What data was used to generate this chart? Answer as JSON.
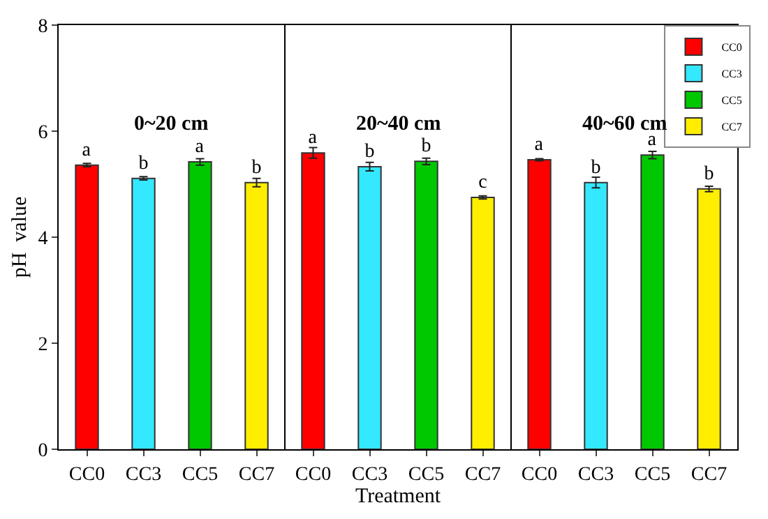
{
  "chart_data": {
    "type": "bar",
    "xlabel": "Treatment",
    "ylabel": "pH  value",
    "annotations": [
      "0~20 cm",
      "20~40 cm",
      "40~60 cm"
    ],
    "categories": [
      "CC0",
      "CC3",
      "CC5",
      "CC7",
      "CC0",
      "CC3",
      "CC5",
      "CC7",
      "CC0",
      "CC3",
      "CC5",
      "CC7"
    ],
    "ylim": [
      0,
      8
    ],
    "yticks": [
      0,
      2,
      4,
      6,
      8
    ],
    "legend": "top right",
    "series": [
      {
        "name": "CC0",
        "color": "#ff0000",
        "values": [
          5.36,
          null,
          null,
          null,
          5.59,
          null,
          null,
          null,
          5.46,
          null,
          null,
          null
        ],
        "errors": [
          0.03,
          null,
          null,
          null,
          0.1,
          null,
          null,
          null,
          0.02,
          null,
          null,
          null
        ],
        "value_labels": [
          "a",
          null,
          null,
          null,
          "a",
          null,
          null,
          null,
          "a",
          null,
          null,
          null
        ]
      },
      {
        "name": "CC3",
        "color": "#33e8ff",
        "values": [
          null,
          5.11,
          null,
          null,
          null,
          5.33,
          null,
          null,
          null,
          5.03,
          null,
          null
        ],
        "errors": [
          null,
          0.03,
          null,
          null,
          null,
          0.08,
          null,
          null,
          null,
          0.1,
          null,
          null
        ],
        "value_labels": [
          null,
          "b",
          null,
          null,
          null,
          "b",
          null,
          null,
          null,
          "b",
          null,
          null
        ]
      },
      {
        "name": "CC5",
        "color": "#00c800",
        "values": [
          null,
          null,
          5.42,
          null,
          null,
          null,
          5.43,
          null,
          null,
          null,
          5.55,
          null
        ],
        "errors": [
          null,
          null,
          0.06,
          null,
          null,
          null,
          0.06,
          null,
          null,
          null,
          0.07,
          null
        ],
        "value_labels": [
          null,
          null,
          "a",
          null,
          null,
          null,
          "b",
          null,
          null,
          null,
          "a",
          null
        ]
      },
      {
        "name": "CC7",
        "color": "#ffee00",
        "values": [
          null,
          null,
          null,
          5.03,
          null,
          null,
          null,
          4.75,
          null,
          null,
          null,
          4.91
        ],
        "errors": [
          null,
          null,
          null,
          0.08,
          null,
          null,
          null,
          0.03,
          null,
          null,
          null,
          0.05
        ],
        "value_labels": [
          null,
          null,
          null,
          "b",
          null,
          null,
          null,
          "c",
          null,
          null,
          null,
          "b"
        ]
      }
    ]
  }
}
